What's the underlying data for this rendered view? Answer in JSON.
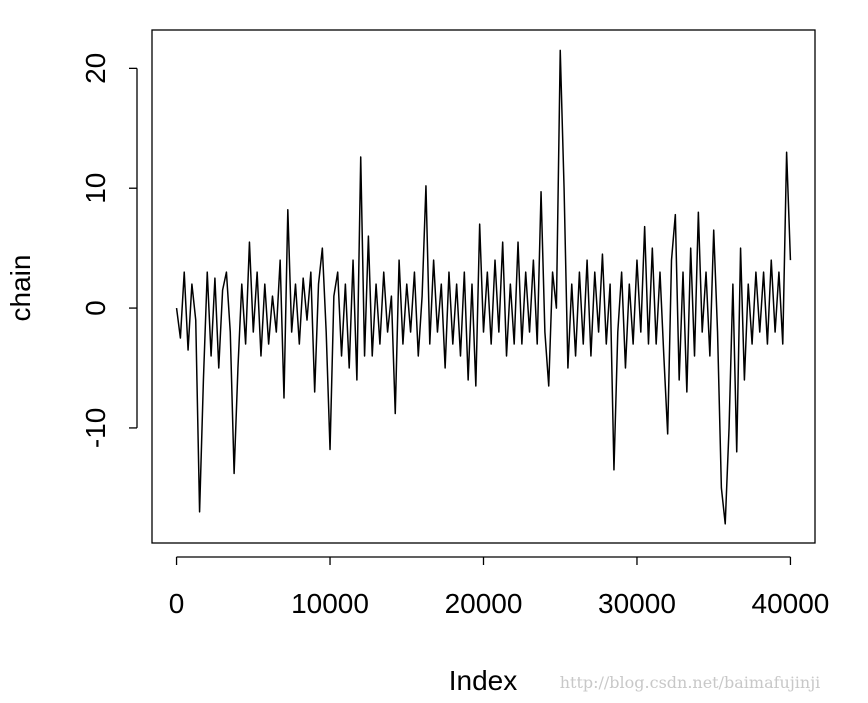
{
  "chart_data": {
    "type": "line",
    "x_label": "Index",
    "y_label": "chain",
    "annotation": "http://blog.csdn.net/baimafujinji",
    "color": "#000000",
    "xlim": [
      -1600,
      41600
    ],
    "ylim": [
      -19.6,
      23.2
    ],
    "xticks": [
      0,
      10000,
      20000,
      30000,
      40000
    ],
    "yticks": [
      -10,
      0,
      10,
      20
    ],
    "x": [
      0,
      250,
      500,
      750,
      1000,
      1250,
      1500,
      1750,
      2000,
      2250,
      2500,
      2750,
      3000,
      3250,
      3500,
      3750,
      4000,
      4250,
      4500,
      4750,
      5000,
      5250,
      5500,
      5750,
      6000,
      6250,
      6500,
      6750,
      7000,
      7250,
      7500,
      7750,
      8000,
      8250,
      8500,
      8750,
      9000,
      9250,
      9500,
      9750,
      10000,
      10250,
      10500,
      10750,
      11000,
      11250,
      11500,
      11750,
      12000,
      12250,
      12500,
      12750,
      13000,
      13250,
      13500,
      13750,
      14000,
      14250,
      14500,
      14750,
      15000,
      15250,
      15500,
      15750,
      16000,
      16250,
      16500,
      16750,
      17000,
      17250,
      17500,
      17750,
      18000,
      18250,
      18500,
      18750,
      19000,
      19250,
      19500,
      19750,
      20000,
      20250,
      20500,
      20750,
      21000,
      21250,
      21500,
      21750,
      22000,
      22250,
      22500,
      22750,
      23000,
      23250,
      23500,
      23750,
      24000,
      24250,
      24500,
      24750,
      25000,
      25250,
      25500,
      25750,
      26000,
      26250,
      26500,
      26750,
      27000,
      27250,
      27500,
      27750,
      28000,
      28250,
      28500,
      28750,
      29000,
      29250,
      29500,
      29750,
      30000,
      30250,
      30500,
      30750,
      31000,
      31250,
      31500,
      31750,
      32000,
      32250,
      32500,
      32750,
      33000,
      33250,
      33500,
      33750,
      34000,
      34250,
      34500,
      34750,
      35000,
      35250,
      35500,
      35750,
      36000,
      36250,
      36500,
      36750,
      37000,
      37250,
      37500,
      37750,
      38000,
      38250,
      38500,
      38750,
      39000,
      39250,
      39500,
      39750,
      40000
    ],
    "values": [
      0,
      -2.5,
      3,
      -3.5,
      2,
      -1,
      -17,
      -6,
      3,
      -4,
      2.5,
      -5,
      1.5,
      3,
      -2,
      -13.8,
      -5,
      2,
      -3,
      5.5,
      -2,
      3,
      -4,
      2,
      -3,
      1,
      -2,
      4,
      -7.5,
      8.2,
      -2,
      2,
      -3,
      2.5,
      -1,
      3,
      -7,
      2,
      5,
      -2,
      -11.8,
      1,
      3,
      -4,
      2,
      -5,
      4,
      -6,
      12.6,
      -4,
      6,
      -4,
      2,
      -3,
      3,
      -2,
      1,
      -8.8,
      4,
      -3,
      2,
      -2,
      3,
      -4,
      1,
      10.2,
      -3,
      4,
      -2,
      2,
      -5,
      3,
      -3,
      2,
      -4,
      3,
      -6,
      2,
      -6.5,
      7,
      -2,
      3,
      -3,
      4,
      -2,
      5.5,
      -4,
      2,
      -3,
      5.5,
      -3,
      3,
      -2,
      4,
      -3,
      9.7,
      -2,
      -6.5,
      3,
      0,
      21.5,
      10,
      -5,
      2,
      -4,
      3,
      -3,
      4,
      -4,
      3,
      -2,
      4.5,
      -3,
      2,
      -13.5,
      -2,
      3,
      -5,
      2,
      -3,
      4,
      -2,
      6.8,
      -3,
      5,
      -3,
      3,
      -4,
      -10.5,
      4,
      7.8,
      -6,
      3,
      -7,
      5,
      -4,
      8,
      -2,
      3,
      -4,
      6.5,
      -2,
      -15,
      -18,
      -10,
      2,
      -12,
      5,
      -6,
      2,
      -3,
      3,
      -2,
      3,
      -3,
      4,
      -2,
      3,
      -3,
      13,
      4
    ]
  }
}
